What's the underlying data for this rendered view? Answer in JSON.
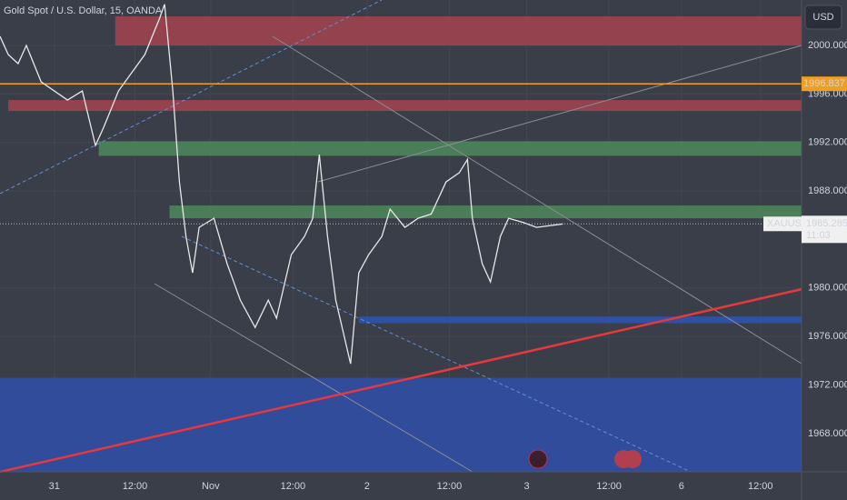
{
  "chart_data": {
    "type": "line",
    "title": "Gold Spot / U.S. Dollar, 15, OANDA",
    "currency": "USD",
    "series": [
      {
        "name": "XAUUSD",
        "color": "#e8e8e8",
        "x": [
          -33,
          -28,
          -22,
          -17,
          -8,
          0,
          8,
          17,
          25,
          30,
          39,
          47,
          55,
          64,
          67,
          72,
          76,
          80,
          84,
          88,
          97,
          105,
          113,
          122,
          130,
          135,
          144,
          152,
          157,
          161,
          166,
          171,
          180,
          185,
          191,
          199,
          204,
          213,
          221,
          229,
          238,
          246,
          251,
          254,
          260,
          265,
          271,
          276,
          285,
          293,
          309
        ],
        "values": [
          2000.75,
          1999.25,
          1998.5,
          2000,
          1997,
          1996.25,
          1995.5,
          1996.25,
          1991.75,
          1993.25,
          1996.25,
          1997.75,
          1999.25,
          2002.25,
          2003.4,
          1996.25,
          1988.75,
          1984.25,
          1981.25,
          1985,
          1985.75,
          1982,
          1979,
          1976.75,
          1979,
          1977.5,
          1982.75,
          1984.25,
          1985.75,
          1991,
          1984.25,
          1979,
          1973.75,
          1981.25,
          1982.75,
          1984.25,
          1986.5,
          1985,
          1985.75,
          1986.1,
          1988.75,
          1989.5,
          1990.6,
          1985.75,
          1982,
          1980.5,
          1984.25,
          1985.75,
          1985.4,
          1985,
          1985.285
        ]
      }
    ],
    "xlim": [
      -33,
      454
    ],
    "ylim": [
      1964.84,
      2003.75
    ],
    "xticks": [
      {
        "value": 0,
        "label": "31"
      },
      {
        "value": 49,
        "label": "12:00"
      },
      {
        "value": 95,
        "label": "Nov"
      },
      {
        "value": 145,
        "label": "12:00"
      },
      {
        "value": 190,
        "label": "2"
      },
      {
        "value": 240,
        "label": "12:00"
      },
      {
        "value": 287,
        "label": "3"
      },
      {
        "value": 337,
        "label": "12:00"
      },
      {
        "value": 381,
        "label": "6"
      },
      {
        "value": 429,
        "label": "12:00"
      }
    ],
    "yticks": [
      {
        "value": 2000,
        "label": "2000.000"
      },
      {
        "value": 1996,
        "label": "1996.000"
      },
      {
        "value": 1992,
        "label": "1992.000"
      },
      {
        "value": 1988,
        "label": "1988.000"
      },
      {
        "value": 1980,
        "label": "1980.000"
      },
      {
        "value": 1976,
        "label": "1976.000"
      },
      {
        "value": 1972,
        "label": "1972.000"
      },
      {
        "value": 1968,
        "label": "1968.000"
      }
    ],
    "grid": true,
    "zones": [
      {
        "from": 2002.4,
        "to": 2000,
        "start": 37,
        "color": "#a3434f"
      },
      {
        "from": 1995.5,
        "to": 1994.6,
        "start": -28,
        "color": "#a3434f"
      },
      {
        "from": 1992.1,
        "to": 1990.9,
        "start": 27,
        "color": "#4e8a5a"
      },
      {
        "from": 1986.8,
        "to": 1985.75,
        "start": 70,
        "color": "#4e8a5a"
      },
      {
        "from": 1977.65,
        "to": 1977.1,
        "start": 185,
        "color": "#2f55b0"
      },
      {
        "from": 1972.6,
        "to": 1964.84,
        "start": -33,
        "color": "#2f4fa8"
      }
    ],
    "hline": {
      "value": 1996.837,
      "color": "#f0a020"
    },
    "trendline": {
      "x": [
        -33,
        454
      ],
      "values": [
        1964.84,
        1979.9
      ],
      "color": "#e8383d"
    },
    "last_price": {
      "value": 1985.285,
      "countdown": "11:03"
    }
  }
}
